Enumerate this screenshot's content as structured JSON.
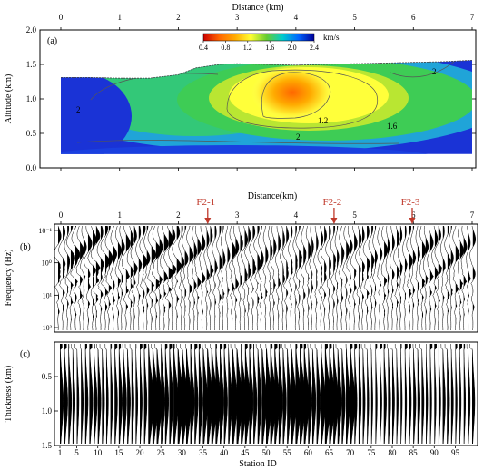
{
  "chart_data": [
    {
      "panel": "(a)",
      "type": "heatmap",
      "title": "",
      "xlabel": "Distance (km)",
      "ylabel": "Altitude (km)",
      "xlim": [
        0,
        7
      ],
      "ylim": [
        0.0,
        2.0
      ],
      "xticks": [
        0,
        1,
        2,
        3,
        4,
        5,
        6,
        7
      ],
      "yticks": [
        "0.0",
        "0.5",
        "1.0",
        "1.5",
        "2.0"
      ],
      "colorbar": {
        "label": "km/s",
        "ticks": [
          "0.4",
          "0.8",
          "1.2",
          "1.6",
          "2.0",
          "2.4"
        ],
        "range": [
          0.4,
          2.4
        ],
        "colors": [
          "#cc0000",
          "#ff6600",
          "#ffaa00",
          "#ffff33",
          "#66cc33",
          "#00cccc",
          "#0066ff",
          "#000099"
        ]
      },
      "contour_labels": [
        "1.2",
        "1.6",
        "2",
        "2",
        "2"
      ],
      "surface_profile": {
        "x": [
          0.0,
          0.5,
          1.0,
          1.5,
          2.0,
          2.3,
          2.7,
          3.0,
          3.5,
          4.0,
          4.5,
          5.0,
          5.5,
          6.0,
          6.5,
          7.0
        ],
        "y": [
          1.31,
          1.31,
          1.3,
          1.3,
          1.35,
          1.45,
          1.5,
          1.51,
          1.5,
          1.49,
          1.5,
          1.51,
          1.52,
          1.53,
          1.54,
          1.56
        ]
      },
      "base_altitude": 0.2
    },
    {
      "panel": "(b)",
      "type": "wiggle",
      "xlabel": "Distance(km)",
      "ylabel": "Frequency (Hz)",
      "xticks": [
        0,
        1,
        2,
        3,
        4,
        5,
        6,
        7
      ],
      "yticks": [
        "10⁻¹",
        "10⁰",
        "10¹",
        "10²"
      ],
      "markers": [
        {
          "label": "F2-1",
          "x": 2.5
        },
        {
          "label": "F2-2",
          "x": 4.65
        },
        {
          "label": "F2-3",
          "x": 5.98
        }
      ],
      "marker_color": "#c0392b"
    },
    {
      "panel": "(c)",
      "type": "wiggle",
      "xlabel": "Station ID",
      "ylabel": "Thickness (km)",
      "xticks": [
        "1",
        "5",
        "10",
        "15",
        "20",
        "25",
        "30",
        "35",
        "40",
        "45",
        "50",
        "55",
        "60",
        "65",
        "70",
        "75",
        "80",
        "85",
        "90",
        "95"
      ],
      "yticks": [
        "0.5",
        "1.0",
        "1.5"
      ],
      "station_range": [
        1,
        99
      ]
    }
  ]
}
